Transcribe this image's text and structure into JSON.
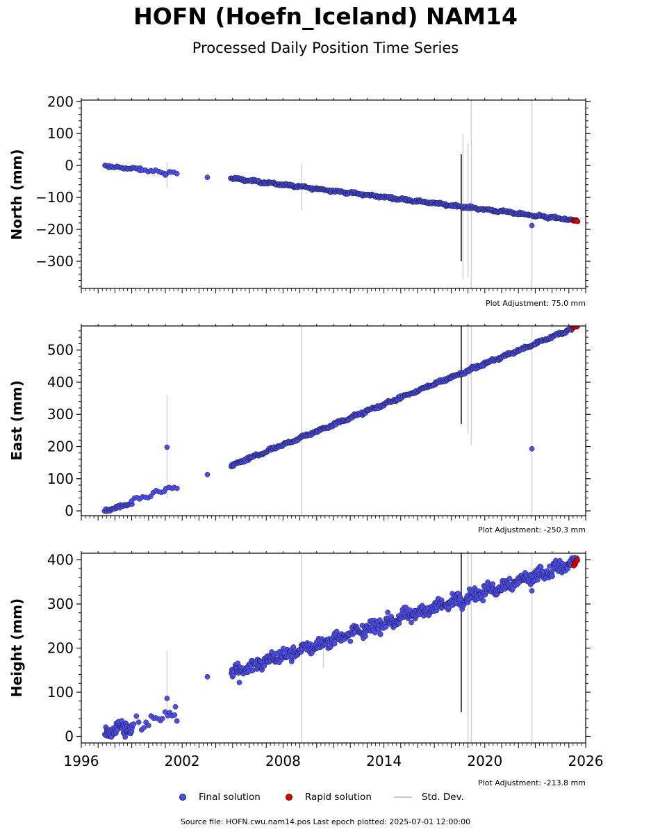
{
  "title": "HOFN (Hoefn_Iceland) NAM14",
  "subtitle": "Processed Daily Position Time Series",
  "source_text": "Source file: HOFN.cwu.nam14.pos  Last epoch plotted: 2025-07-01 12:00:00",
  "legend": {
    "final": "Final solution",
    "rapid": "Rapid solution",
    "stddev": "Std. Dev."
  },
  "colors": {
    "final": "#4d4dea",
    "final_edge": "#1a1a3a",
    "rapid": "#e00000",
    "stddev": "#cfcfcf",
    "stddev_dark": "#444444"
  },
  "chart_data": [
    {
      "type": "scatter",
      "ylabel": "North (mm)",
      "adjustment": "Plot Adjustment: 75.0 mm",
      "xlim": [
        1996,
        2026
      ],
      "ylim": [
        -385,
        205
      ],
      "yticks": [
        200,
        100,
        0,
        -100,
        -200,
        -300
      ],
      "ytick_labels": [
        "200",
        "100",
        "0",
        "−100",
        "−200",
        "−300"
      ],
      "yminor_step": 20,
      "show_xlabels": false,
      "final_segments": [
        {
          "x0": 1997.4,
          "x1": 1999.5,
          "y0": -2,
          "y1": -12,
          "n": 30,
          "jit": 3
        },
        {
          "x0": 1999.5,
          "x1": 2001.7,
          "y0": -14,
          "y1": -25,
          "n": 15,
          "jit": 4
        },
        {
          "x0": 2004.9,
          "x1": 2025.5,
          "y0": -40,
          "y1": -173,
          "n": 520,
          "jit": 3
        }
      ],
      "final_points": [
        [
          2003.5,
          -37
        ],
        [
          2022.8,
          -188
        ],
        [
          2001.0,
          -30
        ]
      ],
      "rapid": {
        "x0": 2025.25,
        "x1": 2025.5,
        "y0": -172,
        "y1": -174,
        "n": 8,
        "jit": 1
      },
      "err_light": [
        [
          2001.1,
          -70,
          10
        ],
        [
          2009.1,
          -140,
          5
        ],
        [
          2018.7,
          -355,
          100
        ],
        [
          2019.0,
          -350,
          70
        ],
        [
          2019.2,
          -390,
          205
        ],
        [
          2022.8,
          -390,
          205
        ]
      ],
      "err_dark": [
        [
          2018.6,
          -300,
          35
        ]
      ]
    },
    {
      "type": "scatter",
      "ylabel": "East (mm)",
      "adjustment": "Plot Adjustment: -250.3 mm",
      "xlim": [
        1996,
        2026
      ],
      "ylim": [
        -15,
        575
      ],
      "yticks": [
        500,
        400,
        300,
        200,
        100,
        0
      ],
      "ytick_labels": [
        "500",
        "400",
        "300",
        "200",
        "100",
        "0"
      ],
      "yminor_step": 20,
      "show_xlabels": false,
      "final_segments": [
        {
          "x0": 1997.4,
          "x1": 1999.0,
          "y0": 0,
          "y1": 22,
          "n": 30,
          "jit": 4
        },
        {
          "x0": 1999.0,
          "x1": 2001.7,
          "y0": 30,
          "y1": 75,
          "n": 18,
          "jit": 6
        },
        {
          "x0": 2004.9,
          "x1": 2025.5,
          "y0": 140,
          "y1": 573,
          "n": 520,
          "jit": 4
        }
      ],
      "final_points": [
        [
          2001.1,
          198
        ],
        [
          2003.5,
          113
        ],
        [
          2022.8,
          193
        ]
      ],
      "rapid": {
        "x0": 2025.25,
        "x1": 2025.5,
        "y0": 570,
        "y1": 575,
        "n": 8,
        "jit": 1
      },
      "err_light": [
        [
          2001.1,
          40,
          360
        ],
        [
          2009.1,
          -15,
          575
        ],
        [
          2019.0,
          240,
          575
        ],
        [
          2019.2,
          205,
          575
        ],
        [
          2022.8,
          -15,
          575
        ]
      ],
      "err_dark": [
        [
          2018.6,
          270,
          575
        ]
      ]
    },
    {
      "type": "scatter",
      "ylabel": "Height (mm)",
      "adjustment": "Plot Adjustment: -213.8 mm",
      "xlim": [
        1996,
        2026
      ],
      "ylim": [
        -15,
        415
      ],
      "yticks": [
        400,
        300,
        200,
        100,
        0
      ],
      "ytick_labels": [
        "400",
        "300",
        "200",
        "100",
        "0"
      ],
      "yminor_step": 20,
      "show_xlabels": true,
      "xticks": [
        1996,
        2002,
        2008,
        2014,
        2020,
        2026
      ],
      "xtick_labels": [
        "1996",
        "2002",
        "2008",
        "2014",
        "2020",
        "2026"
      ],
      "final_segments": [
        {
          "x0": 1997.4,
          "x1": 1999.0,
          "y0": 10,
          "y1": 22,
          "n": 60,
          "jit": 14
        },
        {
          "x0": 1999.0,
          "x1": 2001.7,
          "y0": 25,
          "y1": 45,
          "n": 20,
          "jit": 12
        },
        {
          "x0": 2004.9,
          "x1": 2025.5,
          "y0": 145,
          "y1": 395,
          "n": 620,
          "jit": 12
        }
      ],
      "final_points": [
        [
          2001.1,
          86
        ],
        [
          2003.5,
          135
        ],
        [
          2022.8,
          330
        ],
        [
          2001.6,
          67
        ],
        [
          2005.4,
          122
        ]
      ],
      "rapid": {
        "x0": 2025.3,
        "x1": 2025.5,
        "y0": 390,
        "y1": 400,
        "n": 10,
        "jit": 5
      },
      "err_light": [
        [
          2001.1,
          35,
          195
        ],
        [
          2009.1,
          -15,
          415
        ],
        [
          2010.4,
          155,
          200
        ],
        [
          2019.0,
          -15,
          415
        ],
        [
          2019.2,
          -15,
          415
        ],
        [
          2022.8,
          -15,
          415
        ]
      ],
      "err_dark": [
        [
          2018.6,
          55,
          415
        ]
      ]
    }
  ]
}
